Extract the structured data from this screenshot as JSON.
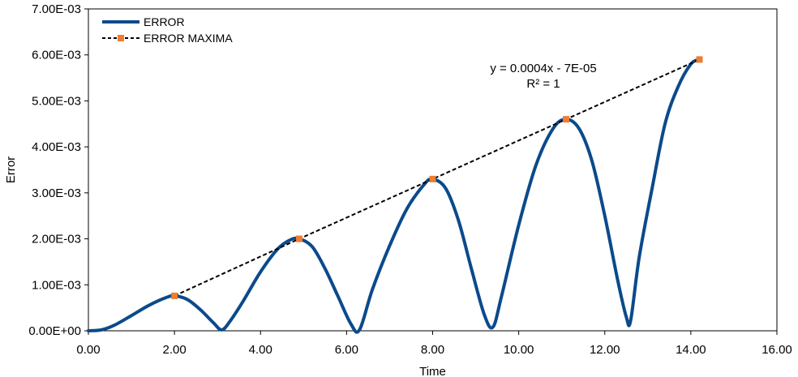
{
  "chart_data": {
    "type": "line",
    "xlabel": "Time",
    "ylabel": "Error",
    "xlim": [
      0,
      16
    ],
    "ylim": [
      0,
      0.007
    ],
    "x_ticks": [
      "0.00",
      "2.00",
      "4.00",
      "6.00",
      "8.00",
      "10.00",
      "12.00",
      "14.00",
      "16.00"
    ],
    "y_ticks": [
      "0.00E+00",
      "1.00E-03",
      "2.00E-03",
      "3.00E-03",
      "4.00E-03",
      "5.00E-03",
      "6.00E-03",
      "7.00E-03"
    ],
    "grid": false,
    "legend_position": "top-left",
    "series": [
      {
        "name": "ERROR",
        "color": "#0B4A8B",
        "style": "solid-line",
        "x": [
          0.0,
          0.3,
          0.6,
          1.0,
          1.4,
          1.8,
          2.0,
          2.3,
          2.6,
          2.9,
          3.1,
          3.3,
          3.6,
          4.0,
          4.4,
          4.7,
          4.9,
          5.2,
          5.5,
          5.8,
          6.1,
          6.3,
          6.6,
          7.0,
          7.4,
          7.8,
          8.0,
          8.3,
          8.6,
          8.9,
          9.2,
          9.4,
          9.6,
          10.0,
          10.4,
          10.8,
          11.1,
          11.4,
          11.7,
          12.0,
          12.3,
          12.5,
          12.6,
          12.8,
          13.1,
          13.4,
          13.7,
          14.0,
          14.2
        ],
        "values": [
          0.0,
          2e-05,
          0.00012,
          0.00033,
          0.00055,
          0.00072,
          0.00076,
          0.00068,
          0.00046,
          0.00018,
          2e-05,
          0.00022,
          0.00065,
          0.00128,
          0.00178,
          0.00198,
          0.002,
          0.00183,
          0.00135,
          0.00075,
          0.00015,
          2e-05,
          0.0009,
          0.00185,
          0.00265,
          0.00318,
          0.0033,
          0.0031,
          0.0024,
          0.00135,
          0.00035,
          8e-05,
          0.00075,
          0.0023,
          0.0036,
          0.0044,
          0.0046,
          0.0044,
          0.0037,
          0.0025,
          0.0011,
          0.0003,
          0.00022,
          0.0016,
          0.0031,
          0.0045,
          0.0053,
          0.0058,
          0.0059
        ]
      },
      {
        "name": "ERROR MAXIMA",
        "color": "#000000",
        "marker_color": "#ED7D31",
        "style": "dashed-line-square-markers",
        "x": [
          2.0,
          4.9,
          8.0,
          11.1,
          14.2
        ],
        "values": [
          0.00076,
          0.002,
          0.0033,
          0.0046,
          0.0059
        ]
      }
    ],
    "annotations": {
      "equation": "y = 0.0004x - 7E-05",
      "r_squared": "R² = 1"
    }
  }
}
